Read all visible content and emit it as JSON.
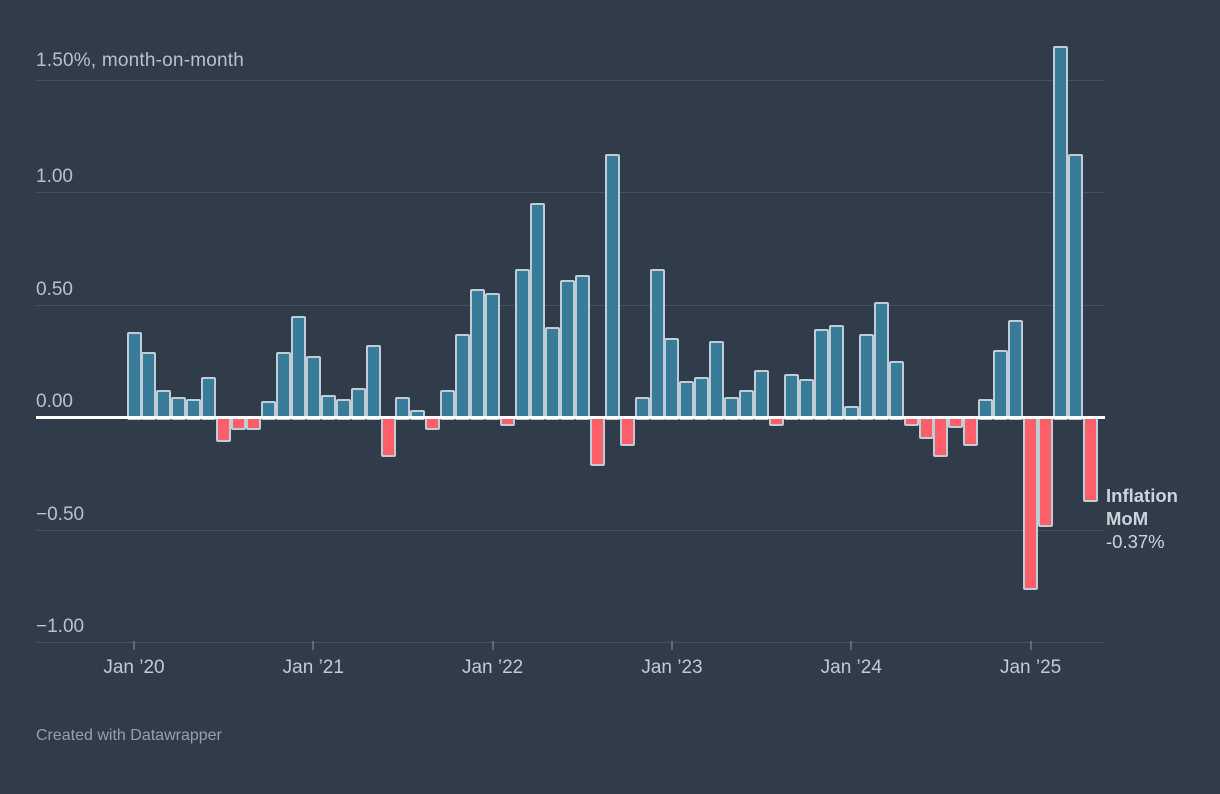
{
  "title": "1.50%, month-on-month",
  "footer": "Created with Datawrapper",
  "annotation": {
    "line1": "Inflation",
    "line2": "MoM",
    "value": "-0.37%"
  },
  "colors": {
    "background": "#313c4b",
    "positive_bar": "#387c99",
    "negative_bar": "#fd5f6a",
    "bar_outline": "#c0ccd6",
    "gridline": "#46505f",
    "zero_line": "#ffffff",
    "axis_text": "#b9c1ca",
    "annotation_text": "#ccd3db"
  },
  "chart_data": {
    "type": "bar",
    "title": "1.50%, month-on-month",
    "series_name": "Inflation MoM",
    "last_value_label": "-0.37%",
    "ylabel": "% month-on-month",
    "ylim": [
      -1.15,
      1.7
    ],
    "grid": true,
    "legend_position": "none",
    "y_ticks": [
      {
        "value": 1.5,
        "label": ""
      },
      {
        "value": 1.0,
        "label": "1.00"
      },
      {
        "value": 0.5,
        "label": "0.50"
      },
      {
        "value": 0.0,
        "label": "0.00"
      },
      {
        "value": -0.5,
        "label": "−0.50"
      },
      {
        "value": -1.0,
        "label": "−1.00"
      }
    ],
    "x_ticks": [
      {
        "index": 0,
        "label": "Jan ’20"
      },
      {
        "index": 12,
        "label": "Jan ’21"
      },
      {
        "index": 24,
        "label": "Jan ’22"
      },
      {
        "index": 36,
        "label": "Jan ’23"
      },
      {
        "index": 48,
        "label": "Jan ’24"
      },
      {
        "index": 60,
        "label": "Jan ’25"
      }
    ],
    "months": [
      "2020-01",
      "2020-02",
      "2020-03",
      "2020-04",
      "2020-05",
      "2020-06",
      "2020-07",
      "2020-08",
      "2020-09",
      "2020-10",
      "2020-11",
      "2020-12",
      "2021-01",
      "2021-02",
      "2021-03",
      "2021-04",
      "2021-05",
      "2021-06",
      "2021-07",
      "2021-08",
      "2021-09",
      "2021-10",
      "2021-11",
      "2021-12",
      "2022-01",
      "2022-02",
      "2022-03",
      "2022-04",
      "2022-05",
      "2022-06",
      "2022-07",
      "2022-08",
      "2022-09",
      "2022-10",
      "2022-11",
      "2022-12",
      "2023-01",
      "2023-02",
      "2023-03",
      "2023-04",
      "2023-05",
      "2023-06",
      "2023-07",
      "2023-08",
      "2023-09",
      "2023-10",
      "2023-11",
      "2023-12",
      "2024-01",
      "2024-02",
      "2024-03",
      "2024-04",
      "2024-05",
      "2024-06",
      "2024-07",
      "2024-08",
      "2024-09",
      "2024-10",
      "2024-11",
      "2024-12",
      "2025-01",
      "2025-02",
      "2025-03",
      "2025-04",
      "2025-05"
    ],
    "values": [
      0.38,
      0.29,
      0.12,
      0.09,
      0.08,
      0.18,
      -0.1,
      -0.05,
      -0.05,
      0.07,
      0.29,
      0.45,
      0.27,
      0.1,
      0.08,
      0.13,
      0.32,
      -0.17,
      0.09,
      0.03,
      -0.05,
      0.12,
      0.37,
      0.57,
      0.55,
      -0.03,
      0.66,
      0.95,
      0.4,
      0.61,
      0.63,
      -0.21,
      1.17,
      -0.12,
      0.09,
      0.66,
      0.35,
      0.16,
      0.18,
      0.34,
      0.09,
      0.12,
      0.21,
      -0.03,
      0.19,
      0.17,
      0.39,
      0.41,
      0.05,
      0.37,
      0.51,
      0.25,
      -0.03,
      -0.09,
      -0.17,
      -0.04,
      -0.12,
      0.08,
      0.3,
      0.43,
      -0.76,
      -0.48,
      1.65,
      1.17,
      -0.37
    ]
  }
}
